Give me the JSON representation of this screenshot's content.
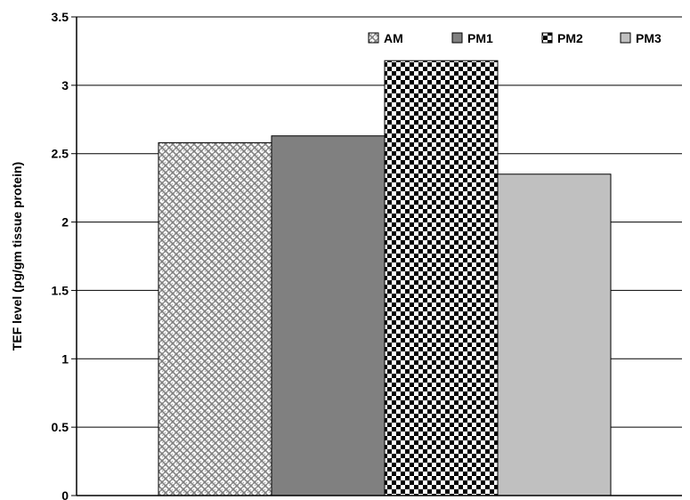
{
  "chart_data": {
    "type": "bar",
    "title": "",
    "xlabel": "",
    "ylabel": "TEF level (pg/gm tissue protein)",
    "ylim": [
      0,
      3.5
    ],
    "yticks": [
      "0",
      "0.5",
      "1",
      "1.5",
      "2",
      "2.5",
      "3",
      "3.5"
    ],
    "grid": true,
    "legend": "top",
    "series": [
      {
        "name": "AM",
        "value": 2.58,
        "pattern": "weave",
        "color": "#808080"
      },
      {
        "name": "PM1",
        "value": 2.63,
        "pattern": "solid",
        "color": "#808080"
      },
      {
        "name": "PM2",
        "value": 3.18,
        "pattern": "checker",
        "color": "#000000"
      },
      {
        "name": "PM3",
        "value": 2.35,
        "pattern": "solid",
        "color": "#c0c0c0"
      }
    ]
  }
}
